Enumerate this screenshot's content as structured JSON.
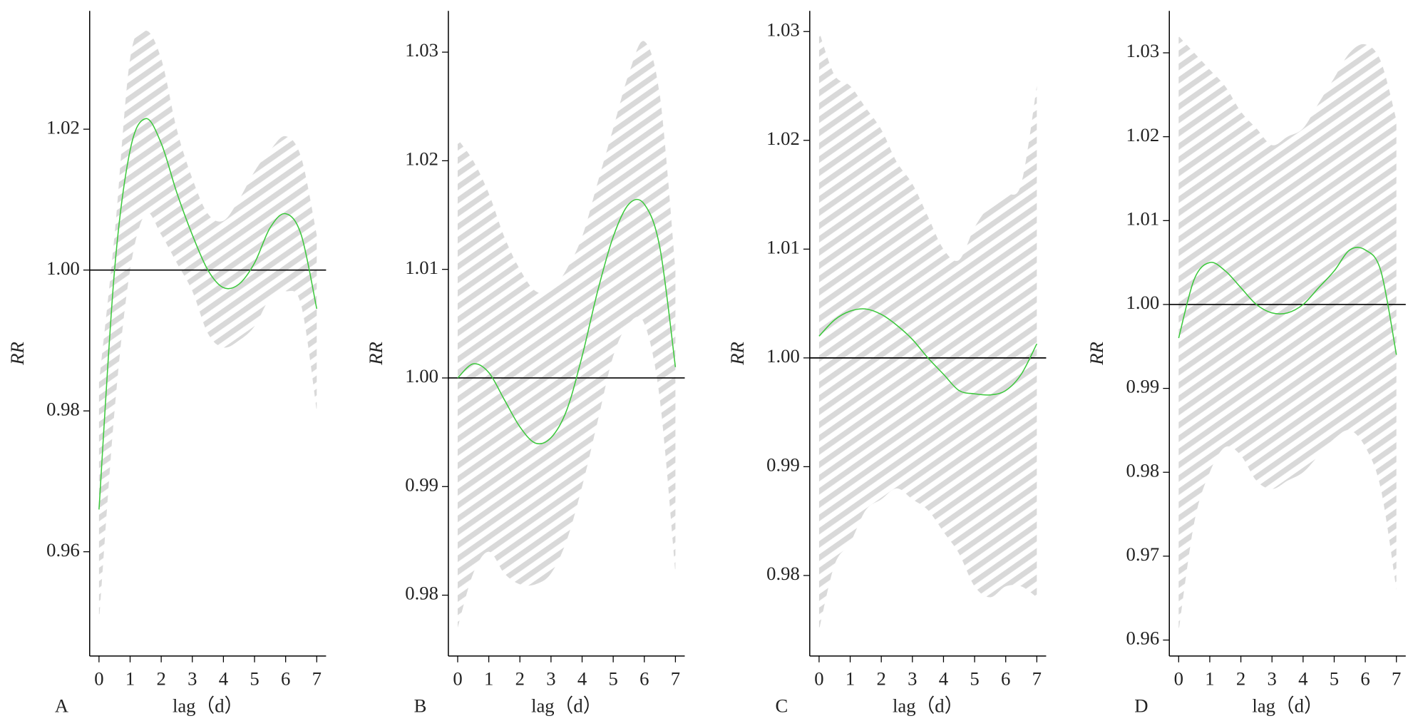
{
  "chart_data": [
    {
      "type": "line",
      "label": "A",
      "xlabel": "lag（d）",
      "ylabel": "RR",
      "x": [
        0,
        0.5,
        1,
        1.5,
        2,
        2.5,
        3,
        3.5,
        4,
        4.5,
        5,
        5.5,
        6,
        6.5,
        7
      ],
      "series": [
        {
          "color": "#3cc83c",
          "values": [
            0.966,
            1.0,
            1.017,
            1.0215,
            1.018,
            1.011,
            1.005,
            1.0,
            0.9975,
            0.998,
            1.001,
            1.006,
            1.008,
            1.005,
            0.9945
          ]
        }
      ],
      "upper": [
        0.984,
        1.005,
        1.03,
        1.034,
        1.03,
        1.02,
        1.013,
        1.008,
        1.007,
        1.01,
        1.014,
        1.017,
        1.019,
        1.016,
        1.005
      ],
      "lower": [
        0.95,
        0.98,
        1.0,
        1.008,
        1.005,
        1.001,
        0.997,
        0.991,
        0.989,
        0.99,
        0.992,
        0.996,
        0.997,
        0.995,
        0.98
      ],
      "band_color": "#d9d9d9",
      "hline": 1,
      "xlim": [
        -0.3,
        7.3
      ],
      "xticks": [
        0,
        1,
        2,
        3,
        4,
        5,
        6,
        7
      ],
      "ylim": [
        0.9452,
        1.0368
      ],
      "yticks": [
        0.96,
        0.98,
        {
          "value": 1,
          "label": "1.00"
        },
        1.02
      ]
    },
    {
      "type": "line",
      "label": "B",
      "xlabel": "lag（d）",
      "ylabel": "RR",
      "x": [
        0,
        0.5,
        1,
        1.5,
        2,
        2.5,
        3,
        3.5,
        4,
        4.5,
        5,
        5.5,
        6,
        6.5,
        7
      ],
      "series": [
        {
          "color": "#3cc83c",
          "values": [
            1.0,
            1.0013,
            1.0005,
            0.998,
            0.9955,
            0.994,
            0.9945,
            0.997,
            1.002,
            1.008,
            1.013,
            1.016,
            1.016,
            1.012,
            1.001
          ]
        }
      ],
      "upper": [
        1.022,
        1.02,
        1.017,
        1.013,
        1.01,
        1.008,
        1.008,
        1.01,
        1.013,
        1.018,
        1.023,
        1.028,
        1.031,
        1.026,
        1.01
      ],
      "lower": [
        0.977,
        0.982,
        0.984,
        0.982,
        0.981,
        0.981,
        0.982,
        0.985,
        0.99,
        0.996,
        1.002,
        1.005,
        1.005,
        0.998,
        0.982
      ],
      "band_color": "#d9d9d9",
      "hline": 1,
      "xlim": [
        -0.3,
        7.3
      ],
      "xticks": [
        0,
        1,
        2,
        3,
        4,
        5,
        6,
        7
      ],
      "ylim": [
        0.9744,
        1.0338
      ],
      "yticks": [
        0.98,
        0.99,
        {
          "value": 1,
          "label": "1.00"
        },
        1.01,
        1.02,
        1.03
      ]
    },
    {
      "type": "line",
      "label": "C",
      "xlabel": "lag（d）",
      "ylabel": "RR",
      "x": [
        0,
        0.5,
        1,
        1.5,
        2,
        2.5,
        3,
        3.5,
        4,
        4.5,
        5,
        5.5,
        6,
        6.5,
        7
      ],
      "series": [
        {
          "color": "#3cc83c",
          "values": [
            1.002,
            1.0035,
            1.0043,
            1.0045,
            1.004,
            1.003,
            1.0017,
            1.0,
            0.9985,
            0.997,
            0.9967,
            0.9966,
            0.997,
            0.9985,
            1.0013
          ]
        }
      ],
      "upper": [
        1.03,
        1.026,
        1.025,
        1.023,
        1.021,
        1.018,
        1.016,
        1.013,
        1.01,
        1.009,
        1.012,
        1.014,
        1.015,
        1.016,
        1.025
      ],
      "lower": [
        0.975,
        0.981,
        0.983,
        0.986,
        0.987,
        0.988,
        0.987,
        0.986,
        0.984,
        0.982,
        0.979,
        0.978,
        0.979,
        0.979,
        0.978
      ],
      "band_color": "#d9d9d9",
      "hline": 1,
      "xlim": [
        -0.3,
        7.3
      ],
      "xticks": [
        0,
        1,
        2,
        3,
        4,
        5,
        6,
        7
      ],
      "ylim": [
        0.9726,
        1.0319
      ],
      "yticks": [
        0.98,
        0.99,
        {
          "value": 1,
          "label": "1.00"
        },
        1.01,
        1.02,
        1.03
      ]
    },
    {
      "type": "line",
      "label": "D",
      "xlabel": "lag（d）",
      "ylabel": "RR",
      "x": [
        0,
        0.5,
        1,
        1.5,
        2,
        2.5,
        3,
        3.5,
        4,
        4.5,
        5,
        5.5,
        6,
        6.5,
        7
      ],
      "series": [
        {
          "color": "#3cc83c",
          "values": [
            0.996,
            1.003,
            1.005,
            1.004,
            1.002,
            1.0,
            0.999,
            0.999,
            1.0,
            1.002,
            1.004,
            1.0065,
            1.0065,
            1.004,
            0.994
          ]
        }
      ],
      "upper": [
        1.032,
        1.03,
        1.028,
        1.026,
        1.023,
        1.021,
        1.019,
        1.02,
        1.021,
        1.024,
        1.027,
        1.03,
        1.031,
        1.029,
        1.022
      ],
      "lower": [
        0.961,
        0.974,
        0.98,
        0.983,
        0.982,
        0.979,
        0.978,
        0.979,
        0.98,
        0.982,
        0.984,
        0.985,
        0.983,
        0.978,
        0.966
      ],
      "band_color": "#d9d9d9",
      "hline": 1,
      "xlim": [
        -0.3,
        7.3
      ],
      "xticks": [
        0,
        1,
        2,
        3,
        4,
        5,
        6,
        7
      ],
      "ylim": [
        0.9581,
        1.035
      ],
      "yticks": [
        0.96,
        0.97,
        0.98,
        0.99,
        {
          "value": 1,
          "label": "1.00"
        },
        1.01,
        1.02,
        1.03
      ]
    }
  ]
}
